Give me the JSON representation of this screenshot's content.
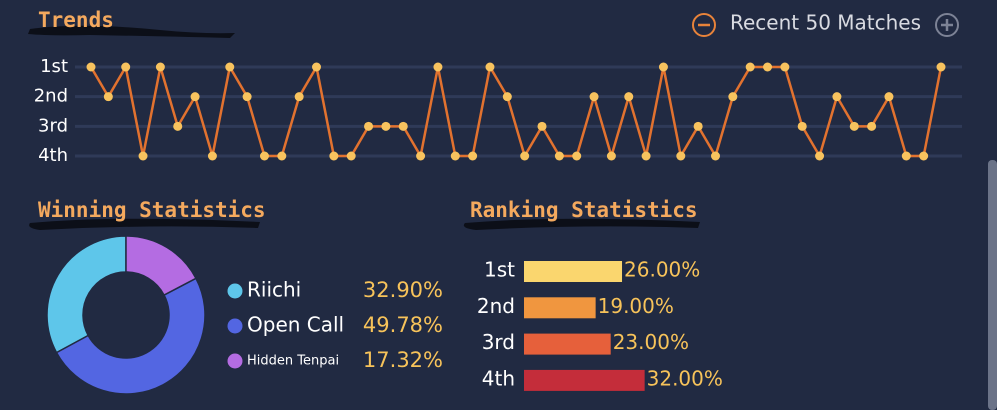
{
  "header": {
    "title": "Trends",
    "matches_label": "Recent 50 Matches"
  },
  "sections": {
    "winning": "Winning Statistics",
    "ranking": "Ranking Statistics"
  },
  "chart_data": [
    {
      "type": "line",
      "values": [
        1,
        2,
        1,
        4,
        1,
        3,
        2,
        4,
        1,
        2,
        4,
        4,
        2,
        1,
        4,
        4,
        3,
        3,
        3,
        4,
        1,
        4,
        4,
        1,
        2,
        4,
        3,
        4,
        4,
        2,
        4,
        2,
        4,
        1,
        4,
        3,
        4,
        2,
        1,
        1,
        1,
        3,
        4,
        2,
        3,
        3,
        2,
        4,
        4,
        1
      ],
      "ylim": [
        4,
        1
      ],
      "yticks": [
        {
          "value": 1,
          "label": "1st"
        },
        {
          "value": 2,
          "label": "2nd"
        },
        {
          "value": 3,
          "label": "3rd"
        },
        {
          "value": 4,
          "label": "4th"
        }
      ],
      "grid": true,
      "line_color": "#e2722f",
      "marker_color": "#f8c35e"
    },
    {
      "type": "donut",
      "categories": [
        "Riichi",
        "Open Call",
        "Hidden Tenpai"
      ],
      "values": [
        32.9,
        49.78,
        17.32
      ],
      "value_labels": [
        "32.90%",
        "49.78%",
        "17.32%"
      ],
      "colors": [
        "#5ec6ea",
        "#5366e2",
        "#b46ce2"
      ]
    },
    {
      "type": "hbar",
      "categories": [
        "1st",
        "2nd",
        "3rd",
        "4th"
      ],
      "values": [
        26.0,
        19.0,
        23.0,
        32.0
      ],
      "value_labels": [
        "26.00%",
        "19.00%",
        "23.00%",
        "32.00%"
      ],
      "colors": [
        "#fad66e",
        "#f0963f",
        "#e6603b",
        "#c42d3a"
      ]
    }
  ]
}
